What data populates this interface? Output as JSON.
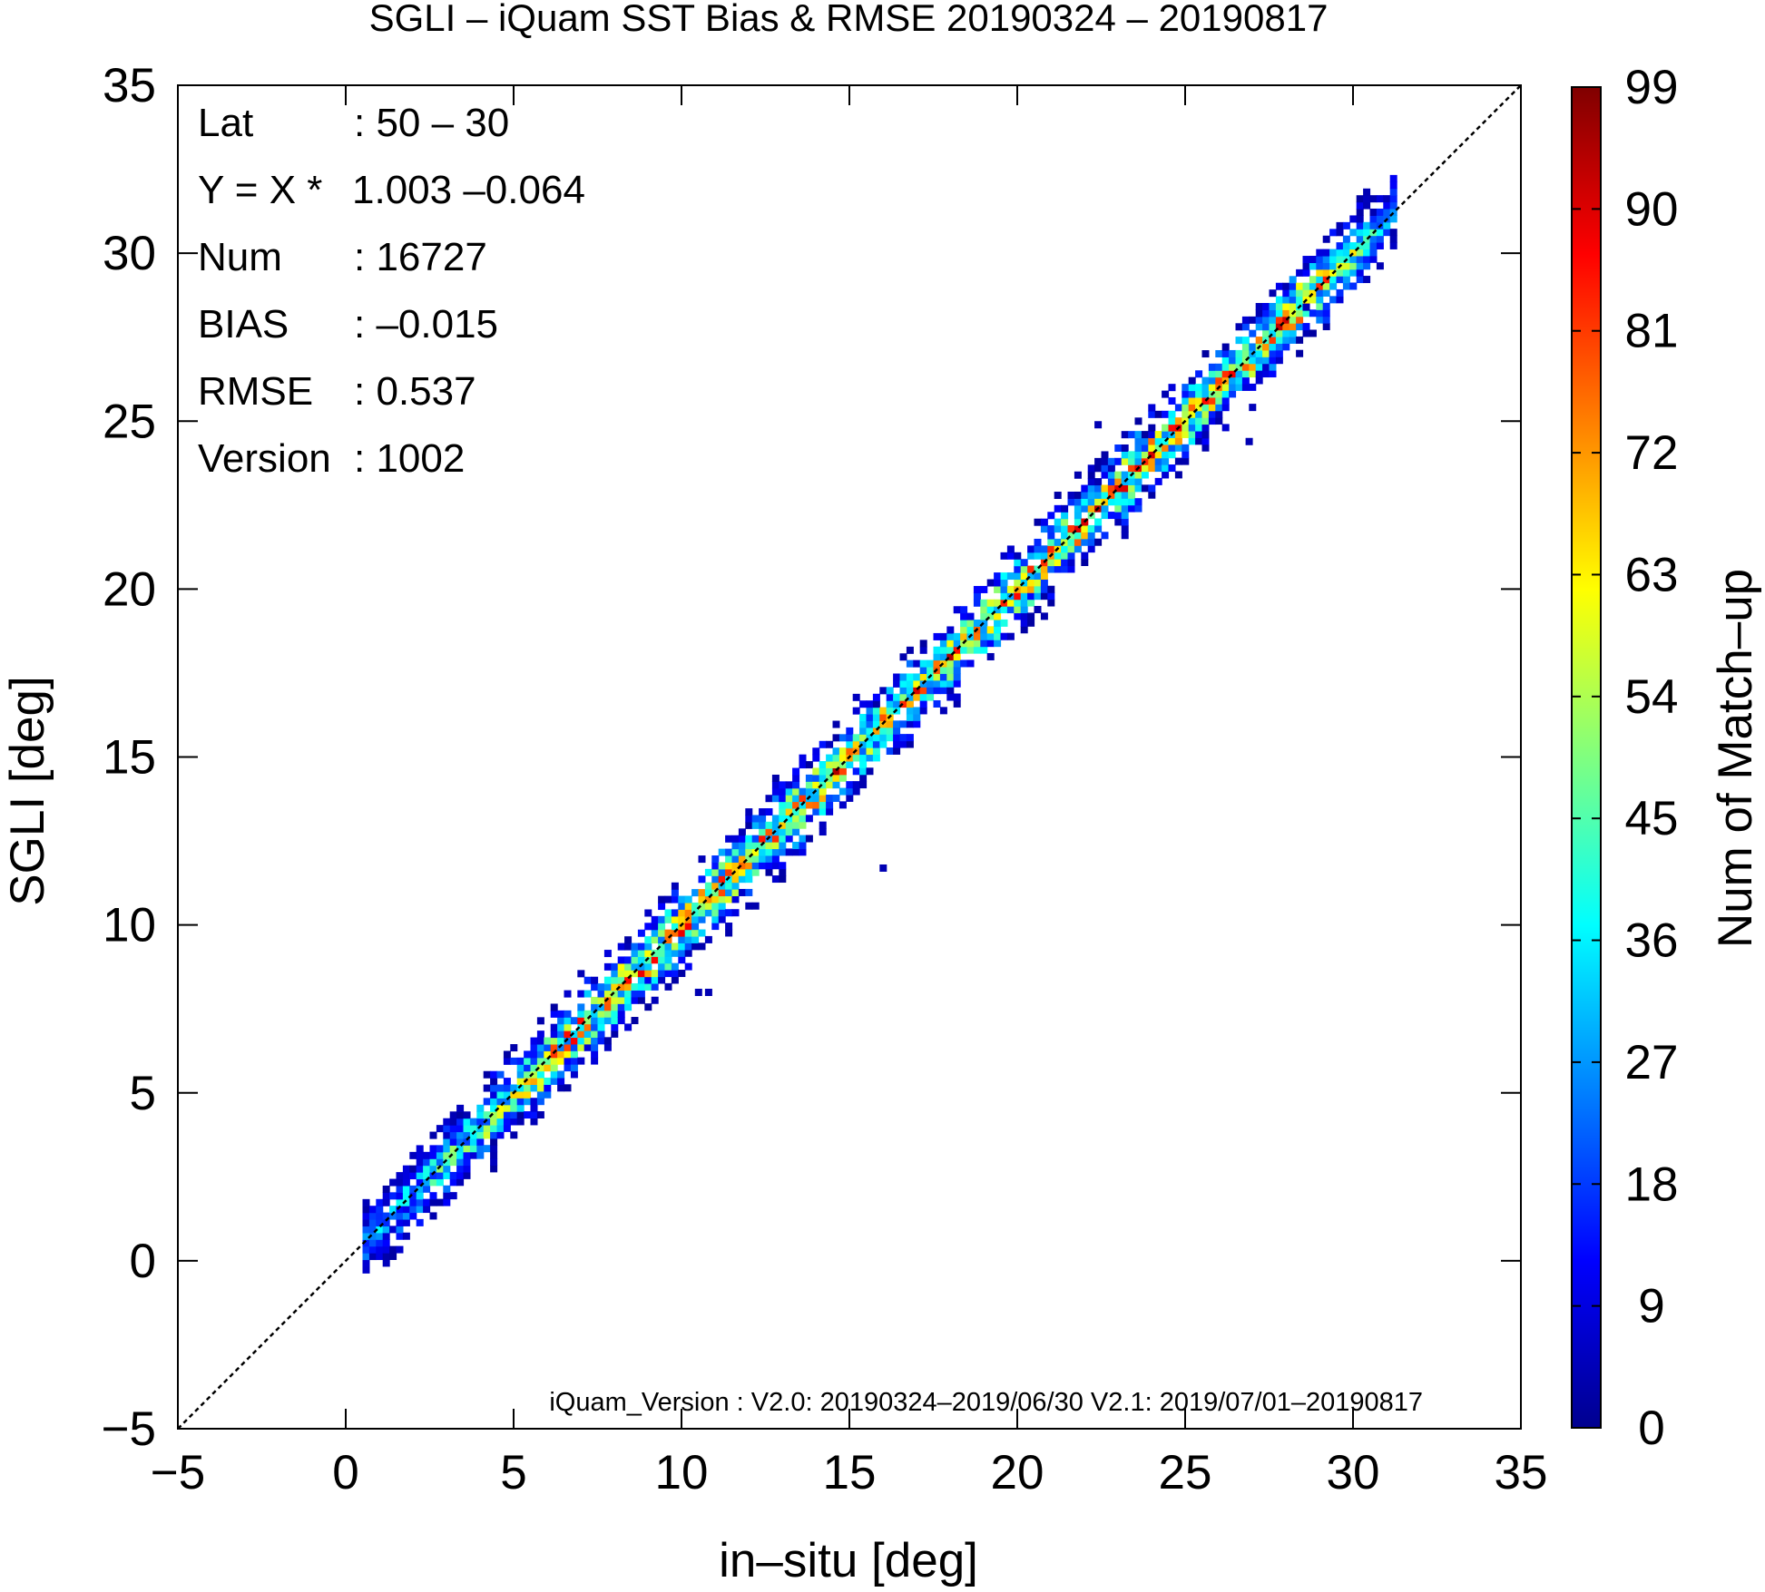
{
  "chart_data": {
    "type": "heatmap",
    "title": "SGLI – iQuam  SST Bias & RMSE 20190324 – 20190817",
    "xlabel": "in–situ [deg]",
    "ylabel": "SGLI [deg]",
    "xlim": [
      -5,
      35
    ],
    "ylim": [
      -5,
      35
    ],
    "x_ticks": [
      "−5",
      "0",
      "5",
      "10",
      "15",
      "20",
      "25",
      "30",
      "35"
    ],
    "y_ticks": [
      "−5",
      "0",
      "5",
      "10",
      "15",
      "20",
      "25",
      "30",
      "35"
    ],
    "x_tick_values": [
      -5,
      0,
      5,
      10,
      15,
      20,
      25,
      30,
      35
    ],
    "y_tick_values": [
      -5,
      0,
      5,
      10,
      15,
      20,
      25,
      30,
      35
    ],
    "reference_line": "y = x (dashed)",
    "stats": [
      {
        "key": "Lat",
        "value": ": 50 – 30"
      },
      {
        "key": "Y = X *",
        "value": "1.003 –0.064"
      },
      {
        "key": "Num",
        "value": ": 16727"
      },
      {
        "key": "BIAS",
        "value": ": –0.015"
      },
      {
        "key": "RMSE",
        "value": ": 0.537"
      },
      {
        "key": "Version",
        "value": ": 1002"
      }
    ],
    "note": "iQuam_Version : V2.0: 20190324–2019/06/30 V2.1: 2019/07/01–20190817",
    "colorbar": {
      "label": "Num of Match–up",
      "ticks": [
        "0",
        "9",
        "18",
        "27",
        "36",
        "45",
        "54",
        "63",
        "72",
        "81",
        "90",
        "99"
      ],
      "tick_values": [
        0,
        9,
        18,
        27,
        36,
        45,
        54,
        63,
        72,
        81,
        90,
        99
      ],
      "min": 0,
      "max": 99,
      "colormap": "jet"
    },
    "density_band": {
      "x_range": [
        0.5,
        31.2
      ],
      "fit_slope": 1.003,
      "fit_intercept": -0.064,
      "typical_spread": 0.537,
      "peak_count": 95
    },
    "isolated_points": [
      [
        15.9,
        11.6
      ],
      [
        10.7,
        7.9
      ],
      [
        10.4,
        7.9
      ],
      [
        22.3,
        24.8
      ],
      [
        26.8,
        24.3
      ],
      [
        25.5,
        24.5
      ],
      [
        28.5,
        28.3
      ]
    ]
  }
}
